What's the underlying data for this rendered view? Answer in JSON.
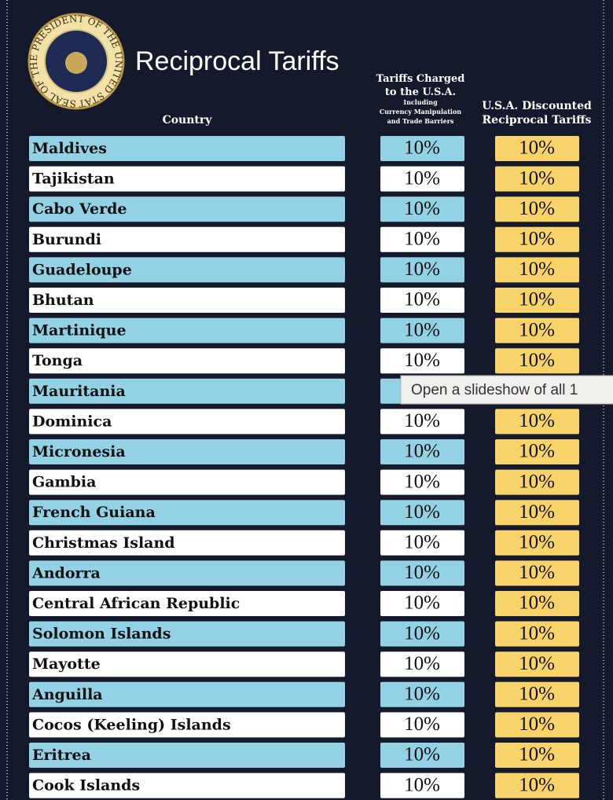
{
  "header": {
    "title": "Reciprocal Tariffs",
    "seal_text": "SEAL OF THE PRESIDENT OF THE UNITED STATES"
  },
  "table": {
    "columns": {
      "country": "Country",
      "charged": [
        "Tariffs Charged",
        "to the U.S.A."
      ],
      "charged_note": [
        "Including",
        "Currency Manipulation",
        "and Trade Barriers"
      ],
      "discounted": [
        "U.S.A. Discounted",
        "Reciprocal Tariffs"
      ]
    },
    "rows": [
      [
        "Maldives",
        "10%",
        "10%"
      ],
      [
        "Tajikistan",
        "10%",
        "10%"
      ],
      [
        "Cabo Verde",
        "10%",
        "10%"
      ],
      [
        "Burundi",
        "10%",
        "10%"
      ],
      [
        "Guadeloupe",
        "10%",
        "10%"
      ],
      [
        "Bhutan",
        "10%",
        "10%"
      ],
      [
        "Martinique",
        "10%",
        "10%"
      ],
      [
        "Tonga",
        "10%",
        "10%"
      ],
      [
        "Mauritania",
        null,
        null
      ],
      [
        "Dominica",
        "10%",
        "10%"
      ],
      [
        "Micronesia",
        "10%",
        "10%"
      ],
      [
        "Gambia",
        "10%",
        "10%"
      ],
      [
        "French Guiana",
        "10%",
        "10%"
      ],
      [
        "Christmas Island",
        "10%",
        "10%"
      ],
      [
        "Andorra",
        "10%",
        "10%"
      ],
      [
        "Central African Republic",
        "10%",
        "10%"
      ],
      [
        "Solomon Islands",
        "10%",
        "10%"
      ],
      [
        "Mayotte",
        "10%",
        "10%"
      ],
      [
        "Anguilla",
        "10%",
        "10%"
      ],
      [
        "Cocos (Keeling) Islands",
        "10%",
        "10%"
      ],
      [
        "Eritrea",
        "10%",
        "10%"
      ],
      [
        "Cook Islands",
        "10%",
        "10%"
      ]
    ]
  },
  "tooltip": "Open a slideshow of all 1"
}
